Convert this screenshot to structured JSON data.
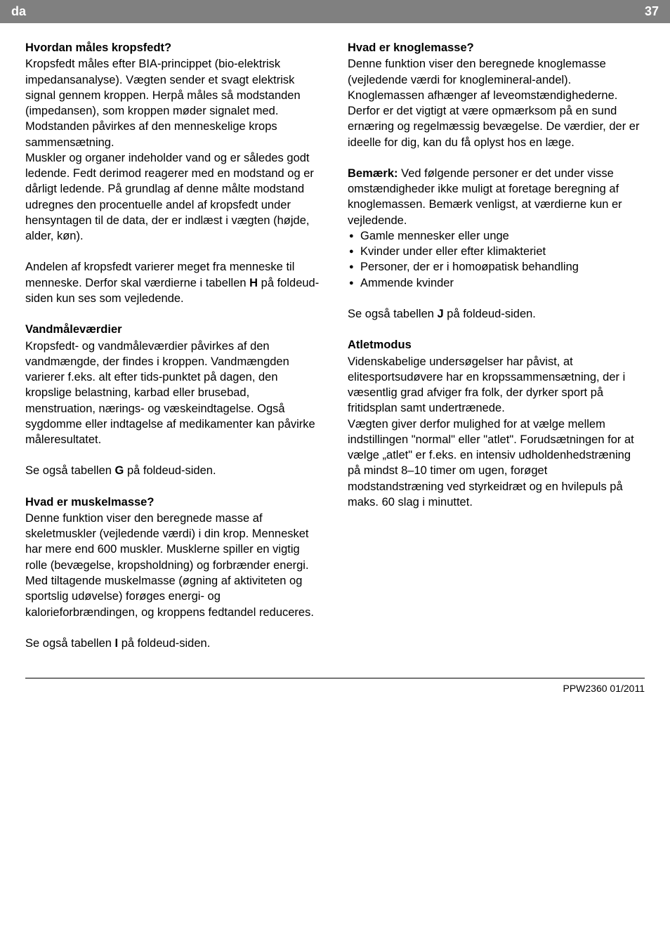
{
  "header": {
    "lang": "da",
    "page": "37",
    "bg_color": "#808080",
    "text_color": "#ffffff"
  },
  "left": {
    "s1": {
      "heading": "Hvordan måles kropsfedt?",
      "p1": "Kropsfedt måles efter BIA-princippet (bio-elektrisk impedansanalyse). Vægten sender et svagt elektrisk signal gennem kroppen. Herpå måles så modstanden (impedansen), som kroppen møder signalet med. Modstanden påvirkes af den menneskelige krops sammensætning.",
      "p2": "Muskler og organer indeholder vand og er således godt ledende. Fedt derimod reagerer med en modstand og er dårligt ledende. På grundlag af denne målte modstand udregnes den procentuelle andel af kropsfedt under hensyntagen til de data, der er indlæst i vægten (højde, alder, køn).",
      "p3a": "Andelen af kropsfedt varierer meget fra menneske til menneske. Derfor skal værdierne i tabellen ",
      "p3b": "H",
      "p3c": " på foldeud-siden kun ses som vejledende."
    },
    "s2": {
      "heading": "Vandmåleværdier",
      "p1": "Kropsfedt- og vandmåleværdier påvirkes af den vandmængde, der findes i kroppen. Vandmængden varierer f.eks. alt efter tids-punktet på dagen, den kropslige belastning, karbad eller brusebad, menstruation, nærings- og væskeindtagelse. Også sygdomme eller indtagelse af medikamenter kan påvirke måleresultatet.",
      "p2a": "Se også tabellen ",
      "p2b": "G",
      "p2c": " på foldeud-siden."
    },
    "s3": {
      "heading": "Hvad er muskelmasse?",
      "p1": "Denne funktion viser den beregnede masse af skeletmuskler (vejledende værdi) i din krop. Mennesket har mere end 600 muskler. Musklerne spiller en vigtig rolle (bevægelse, kropsholdning) og forbrænder energi. Med tiltagende muskelmasse (øgning af aktiviteten og sportslig udøvelse) forøges energi- og kalorieforbrændingen, og kroppens fedtandel reduceres.",
      "p2a": "Se også tabellen ",
      "p2b": "I",
      "p2c": " på foldeud-siden."
    }
  },
  "right": {
    "s1": {
      "heading": "Hvad er knoglemasse?",
      "p1": "Denne funktion viser den beregnede knoglemasse (vejledende værdi for knoglemineral-andel). Knoglemassen afhænger af leveomstændighederne. Derfor er det vigtigt at være opmærksom på en sund ernæring og regelmæssig bevægelse. De værdier, der er ideelle for dig, kan du få oplyst hos en læge.",
      "p2a": "Bemærk:",
      "p2b": " Ved følgende personer er det under visse omstændigheder ikke muligt at foretage beregning af knoglemassen. Bemærk venligst, at værdierne kun er vejledende.",
      "bullets": {
        "b1": "Gamle mennesker eller unge",
        "b2": "Kvinder under eller efter klimakteriet",
        "b3": "Personer, der er i homoøpatisk behandling",
        "b4": "Ammende kvinder"
      },
      "p3a": "Se også tabellen ",
      "p3b": "J",
      "p3c": " på foldeud-siden."
    },
    "s2": {
      "heading": "Atletmodus",
      "p1": "Videnskabelige undersøgelser har påvist, at elitesportsudøvere har en kropssammensætning, der i væsentlig grad afviger fra folk, der dyrker sport på fritidsplan samt undertrænede.",
      "p2": "Vægten giver derfor mulighed for at vælge mellem indstillingen \"normal\" eller \"atlet\". Forudsætningen for at vælge „atlet\" er f.eks. en intensiv udholdenhedstræning på mindst 8–10 timer om ugen, forøget modstandstræning ved styrkeidræt og en hvilepuls på maks. 60 slag i minuttet."
    }
  },
  "footer": {
    "text": "PPW2360   01/2011"
  }
}
